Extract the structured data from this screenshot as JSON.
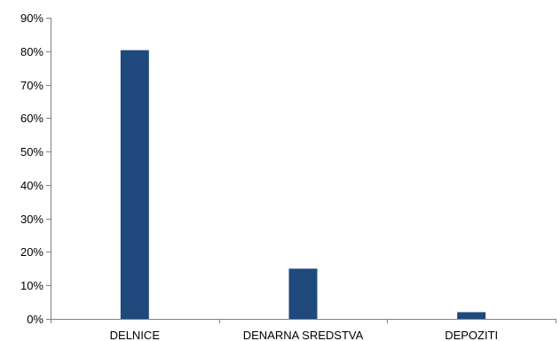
{
  "chart_data": {
    "type": "bar",
    "categories": [
      "DELNICE",
      "DENARNA SREDSTVA",
      "DEPOZITI"
    ],
    "series": [
      {
        "values": [
          80.3,
          15.0,
          2.0
        ],
        "color": "#1f497d"
      }
    ],
    "y_unit": "%",
    "ylim": [
      0,
      90
    ],
    "y_ticks": [
      0,
      10,
      20,
      30,
      40,
      50,
      60,
      70,
      80,
      90
    ],
    "y_tick_labels": [
      "0%",
      "10%",
      "20%",
      "30%",
      "40%",
      "50%",
      "60%",
      "70%",
      "80%",
      "90%"
    ],
    "grid": false,
    "legend": "none"
  }
}
